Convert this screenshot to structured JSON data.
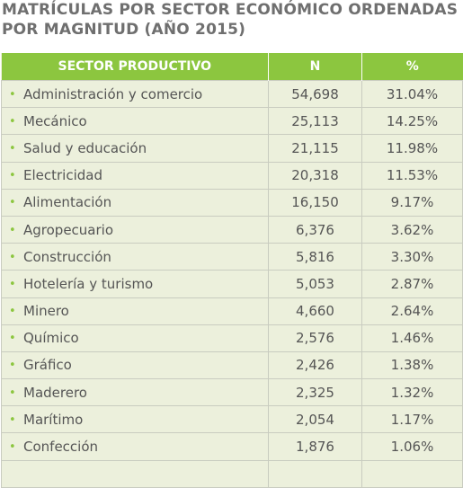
{
  "title": {
    "line1": "MATRÍCULAS POR SECTOR ECONÓMICO ORDENADAS",
    "line2": "POR MAGNITUD (AÑO 2015)"
  },
  "table": {
    "headers": {
      "sector": "SECTOR PRODUCTIVO",
      "n": "N",
      "pct": "%"
    },
    "bullet_glyph": "•",
    "rows": [
      {
        "sector": "Administración y comercio",
        "n": "54,698",
        "pct": "31.04%"
      },
      {
        "sector": "Mecánico",
        "n": "25,113",
        "pct": "14.25%"
      },
      {
        "sector": "Salud y educación",
        "n": "21,115",
        "pct": "11.98%"
      },
      {
        "sector": "Electricidad",
        "n": "20,318",
        "pct": "11.53%"
      },
      {
        "sector": "Alimentación",
        "n": "16,150",
        "pct": "9.17%"
      },
      {
        "sector": "Agropecuario",
        "n": "6,376",
        "pct": "3.62%"
      },
      {
        "sector": "Construcción",
        "n": "5,816",
        "pct": "3.30%"
      },
      {
        "sector": "Hotelería y turismo",
        "n": "5,053",
        "pct": "2.87%"
      },
      {
        "sector": "Minero",
        "n": "4,660",
        "pct": "2.64%"
      },
      {
        "sector": "Químico",
        "n": "2,576",
        "pct": "1.46%"
      },
      {
        "sector": "Gráfico",
        "n": "2,426",
        "pct": "1.38%"
      },
      {
        "sector": "Maderero",
        "n": "2,325",
        "pct": "1.32%"
      },
      {
        "sector": "Marítimo",
        "n": "2,054",
        "pct": "1.17%"
      },
      {
        "sector": "Confección",
        "n": "1,876",
        "pct": "1.06%"
      },
      {
        "sector": "",
        "n": "",
        "pct": ""
      }
    ]
  },
  "colors": {
    "header_green": "#8cc63f",
    "row_background": "#ecf0dc",
    "title_gray": "#6f6f6f",
    "text_gray": "#555555"
  }
}
